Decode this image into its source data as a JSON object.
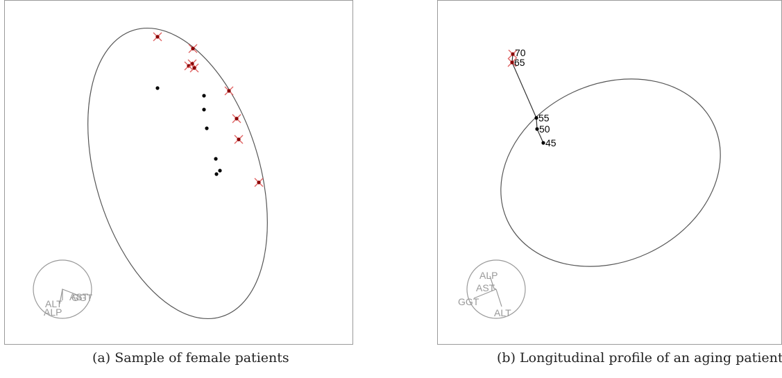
{
  "panel_a": {
    "caption": "(a) Sample of female patients",
    "biplot_labels": [
      "ALT",
      "ALP",
      "AST",
      "GGT"
    ]
  },
  "panel_b": {
    "caption": "(b) Longitudinal profile of an aging patient",
    "age_labels": [
      "70",
      "65",
      "55",
      "50",
      "45"
    ],
    "biplot_labels": [
      "ALP",
      "AST",
      "GGT",
      "ALT"
    ]
  },
  "colors": {
    "frame": "#999999",
    "ellipse": "#555555",
    "point": "#000000",
    "outlier_marker": "#e06060",
    "outlier_point": "#8b0000",
    "biplot": "#999999"
  }
}
